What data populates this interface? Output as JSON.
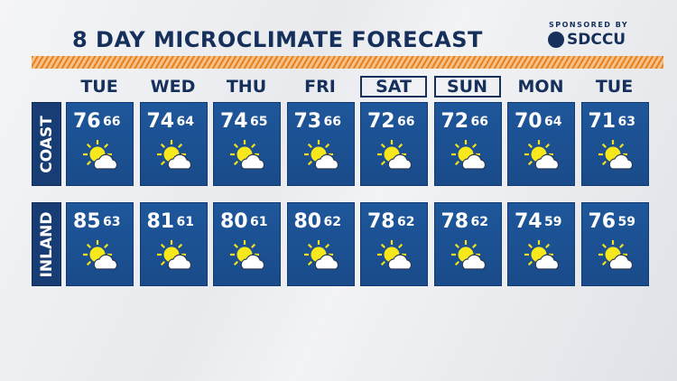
{
  "header": {
    "title": "8 DAY MICROCLIMATE FORECAST",
    "sponsor_label": "SPONSORED BY",
    "sponsor": "SDCCU"
  },
  "days": [
    {
      "label": "TUE",
      "boxed": false
    },
    {
      "label": "WED",
      "boxed": false
    },
    {
      "label": "THU",
      "boxed": false
    },
    {
      "label": "FRI",
      "boxed": false
    },
    {
      "label": "SAT",
      "boxed": true
    },
    {
      "label": "SUN",
      "boxed": true
    },
    {
      "label": "MON",
      "boxed": false
    },
    {
      "label": "TUE",
      "boxed": false
    }
  ],
  "rows": [
    {
      "label": "COAST",
      "highs": [
        76,
        74,
        74,
        73,
        72,
        72,
        70,
        71
      ],
      "lows": [
        66,
        64,
        65,
        66,
        66,
        66,
        64,
        63
      ]
    },
    {
      "label": "INLAND",
      "highs": [
        85,
        81,
        80,
        80,
        78,
        78,
        74,
        76
      ],
      "lows": [
        63,
        61,
        61,
        62,
        62,
        62,
        59,
        59
      ]
    }
  ]
}
